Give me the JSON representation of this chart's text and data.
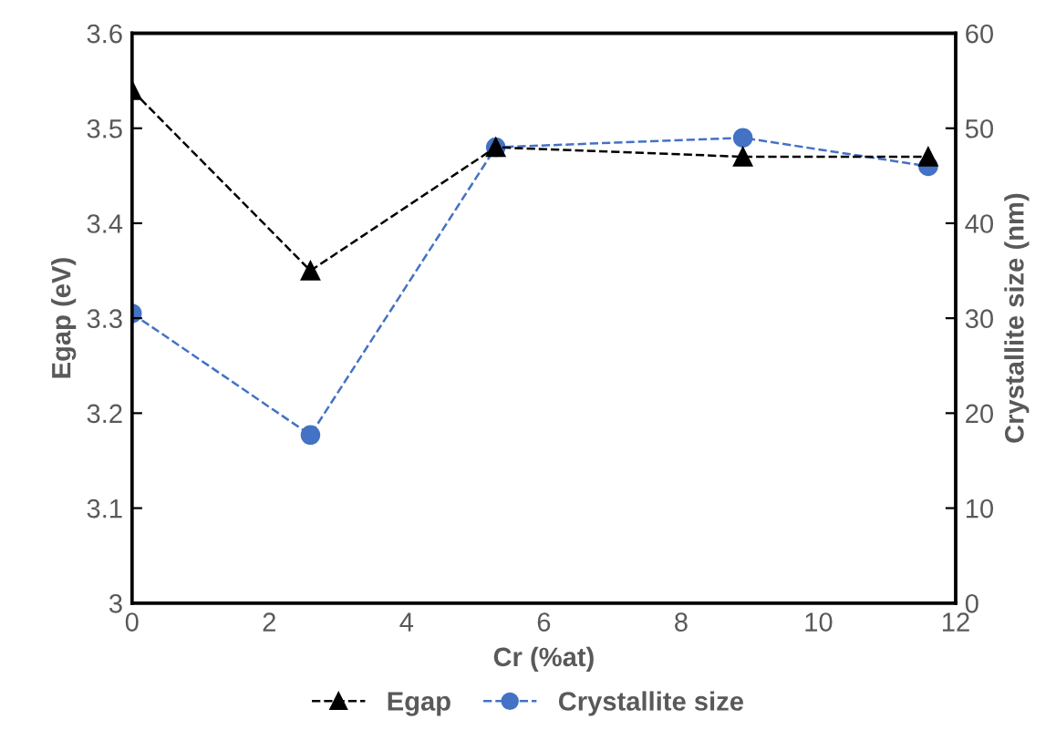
{
  "chart_data": {
    "type": "line",
    "xlabel": "Cr (%at)",
    "ylabel": "Egap (eV)",
    "y2label": "Crystallite size (nm)",
    "x": [
      0,
      2.6,
      5.3,
      8.9,
      11.6
    ],
    "series": [
      {
        "name": "Egap",
        "color": "#000000",
        "values": [
          3.54,
          3.35,
          3.48,
          3.47,
          3.47
        ],
        "marker": "triangle",
        "line_style": "dashed"
      },
      {
        "name": "Crystallite size",
        "color": "#4472c4",
        "values": [
          30.5,
          17.7,
          48,
          49,
          46
        ],
        "marker": "circle",
        "line_style": "dashed",
        "axis": "y2"
      }
    ],
    "xlim": [
      0,
      12
    ],
    "xticks": [
      0,
      2,
      4,
      6,
      8,
      10,
      12
    ],
    "ylim": [
      3,
      3.6
    ],
    "yticks": [
      3,
      3.1,
      3.2,
      3.3,
      3.4,
      3.5,
      3.6
    ],
    "y2lim": [
      0,
      60
    ],
    "y2ticks": [
      0,
      10,
      20,
      30,
      40,
      50,
      60
    ],
    "grid": false,
    "legend": "bottom"
  }
}
